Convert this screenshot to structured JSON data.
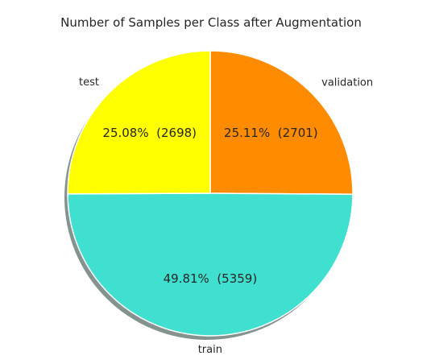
{
  "chart_data": {
    "type": "pie",
    "title": "Number of Samples per Class after Augmentation",
    "slices": [
      {
        "label": "validation",
        "value": 2701,
        "percent_label": "25.11%  (2701)",
        "color": "#FF8C00"
      },
      {
        "label": "train",
        "value": 5359,
        "percent_label": "49.81%  (5359)",
        "color": "#40E0D0"
      },
      {
        "label": "test",
        "value": 2698,
        "percent_label": "25.08%  (2698)",
        "color": "#FFFF00"
      }
    ],
    "shadow": true,
    "edge_color": "#ffffff"
  }
}
